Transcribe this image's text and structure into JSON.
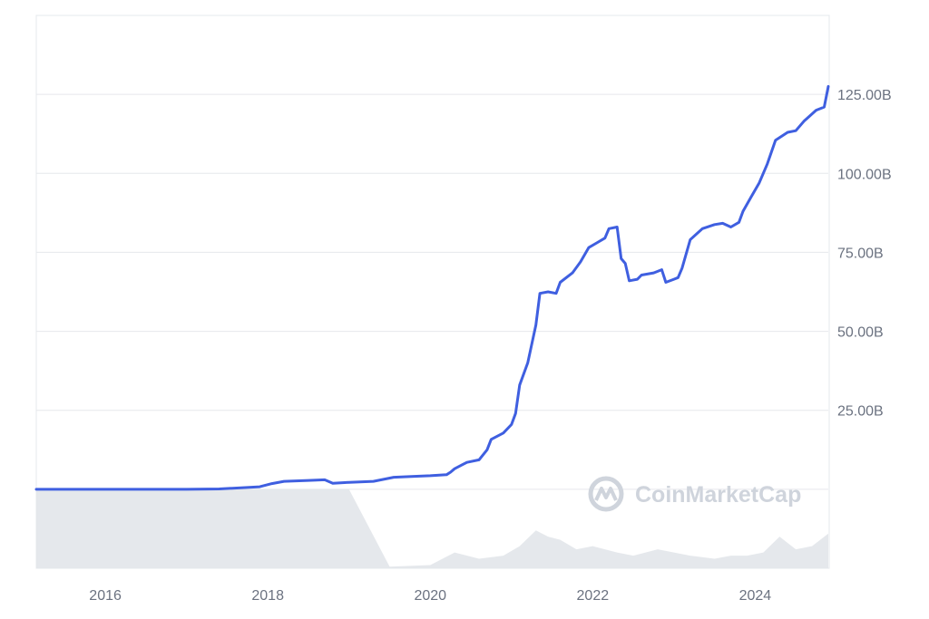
{
  "chart_data": {
    "type": "line",
    "title": "",
    "xlabel": "",
    "ylabel": "",
    "xlim": [
      2015.15,
      2024.9
    ],
    "ylim": [
      -25,
      150
    ],
    "y_unit": "B",
    "grid": "horizontal",
    "legend": "none",
    "x_ticks": [
      {
        "value": 2016,
        "label": "2016"
      },
      {
        "value": 2018,
        "label": "2018"
      },
      {
        "value": 2020,
        "label": "2020"
      },
      {
        "value": 2022,
        "label": "2022"
      },
      {
        "value": 2024,
        "label": "2024"
      }
    ],
    "y_ticks": [
      {
        "value": 25,
        "label": "25.00B"
      },
      {
        "value": 50,
        "label": "50.00B"
      },
      {
        "value": 75,
        "label": "75.00B"
      },
      {
        "value": 100,
        "label": "100.00B"
      },
      {
        "value": 125,
        "label": "125.00B"
      }
    ],
    "series": [
      {
        "color": "#3f5fe0",
        "x": [
          2015.15,
          2016.0,
          2017.0,
          2017.4,
          2017.9,
          2018.05,
          2018.2,
          2018.5,
          2018.7,
          2018.8,
          2019.0,
          2019.3,
          2019.55,
          2019.8,
          2020.0,
          2020.2,
          2020.25,
          2020.3,
          2020.45,
          2020.6,
          2020.7,
          2020.75,
          2020.9,
          2021.0,
          2021.05,
          2021.1,
          2021.2,
          2021.3,
          2021.35,
          2021.45,
          2021.55,
          2021.6,
          2021.75,
          2021.85,
          2021.95,
          2022.05,
          2022.15,
          2022.2,
          2022.3,
          2022.35,
          2022.4,
          2022.45,
          2022.55,
          2022.6,
          2022.75,
          2022.85,
          2022.9,
          2023.0,
          2023.05,
          2023.1,
          2023.2,
          2023.35,
          2023.5,
          2023.6,
          2023.7,
          2023.8,
          2023.85,
          2023.95,
          2024.05,
          2024.15,
          2024.25,
          2024.4,
          2024.5,
          2024.6,
          2024.75,
          2024.85,
          2024.9
        ],
        "y": [
          0.0,
          0.0,
          0.0,
          0.1,
          0.8,
          1.8,
          2.5,
          2.8,
          3.0,
          1.9,
          2.2,
          2.5,
          3.8,
          4.1,
          4.3,
          4.6,
          5.4,
          6.5,
          8.5,
          9.3,
          12.5,
          15.8,
          17.8,
          20.5,
          24.0,
          33.0,
          40.0,
          52.0,
          62.0,
          62.5,
          62.0,
          65.5,
          68.5,
          72.0,
          76.5,
          78.0,
          79.5,
          82.5,
          83.0,
          73.0,
          71.5,
          66.0,
          66.5,
          67.8,
          68.5,
          69.5,
          65.5,
          66.5,
          67.0,
          70.0,
          79.0,
          82.5,
          83.8,
          84.2,
          83.0,
          84.5,
          88.0,
          92.5,
          97.0,
          103.0,
          110.5,
          113.0,
          113.5,
          116.5,
          120.0,
          121.0,
          127.5
        ]
      }
    ],
    "volume_area": {
      "x": [
        2015.15,
        2019.0,
        2019.5,
        2020.0,
        2020.3,
        2020.6,
        2020.9,
        2021.1,
        2021.3,
        2021.45,
        2021.6,
        2021.8,
        2022.0,
        2022.3,
        2022.5,
        2022.8,
        2023.0,
        2023.2,
        2023.5,
        2023.7,
        2023.9,
        2024.1,
        2024.3,
        2024.5,
        2024.7,
        2024.9
      ],
      "y": [
        0,
        0,
        -24.5,
        -24,
        -20,
        -22,
        -21,
        -18,
        -13,
        -15,
        -16,
        -19,
        -18,
        -20,
        -21,
        -19,
        -20,
        -21,
        -22,
        -21,
        -21,
        -20,
        -15,
        -19,
        -18,
        -14
      ]
    }
  },
  "watermark": {
    "text": "CoinMarketCap",
    "icon": "coinmarketcap-logo-icon"
  },
  "colors": {
    "line": "#3f5fe0",
    "grid": "#e6e8ec",
    "axis_text": "#6b7280",
    "volume": "#e2e5ea",
    "watermark": "#cfd4dc"
  }
}
